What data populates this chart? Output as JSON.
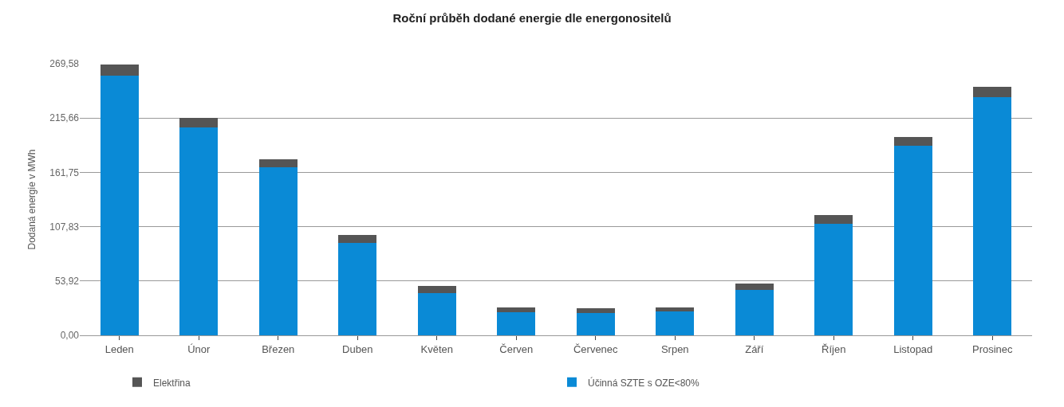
{
  "chart_data": {
    "type": "bar",
    "stacked": true,
    "title": "Roční průběh dodané energie dle energonositelů",
    "ylabel": "Dodaná energie v MWh",
    "categories": [
      "Leden",
      "Únor",
      "Březen",
      "Duben",
      "Květen",
      "Červen",
      "Červenec",
      "Srpen",
      "Září",
      "Říjen",
      "Listopad",
      "Prosinec"
    ],
    "series": [
      {
        "name": "Účinná SZTE s OZE<80%",
        "color": "#0a8ad6",
        "values": [
          258,
          206,
          167,
          92,
          42,
          23,
          22,
          24,
          45,
          111,
          188,
          236
        ]
      },
      {
        "name": "Elektřina",
        "color": "#555555",
        "values": [
          11,
          10,
          8,
          8,
          7,
          4.5,
          4.5,
          4,
          6,
          8,
          9,
          10.5
        ]
      }
    ],
    "ylim": [
      0,
      269.58
    ],
    "yticks": [
      {
        "value": 0,
        "label": "0,00"
      },
      {
        "value": 53.92,
        "label": "53,92"
      },
      {
        "value": 107.83,
        "label": "107,83"
      },
      {
        "value": 161.75,
        "label": "161,75"
      },
      {
        "value": 215.66,
        "label": "215,66"
      },
      {
        "value": 269.58,
        "label": "269,58"
      }
    ],
    "grid": "y",
    "legend": "bottom"
  }
}
